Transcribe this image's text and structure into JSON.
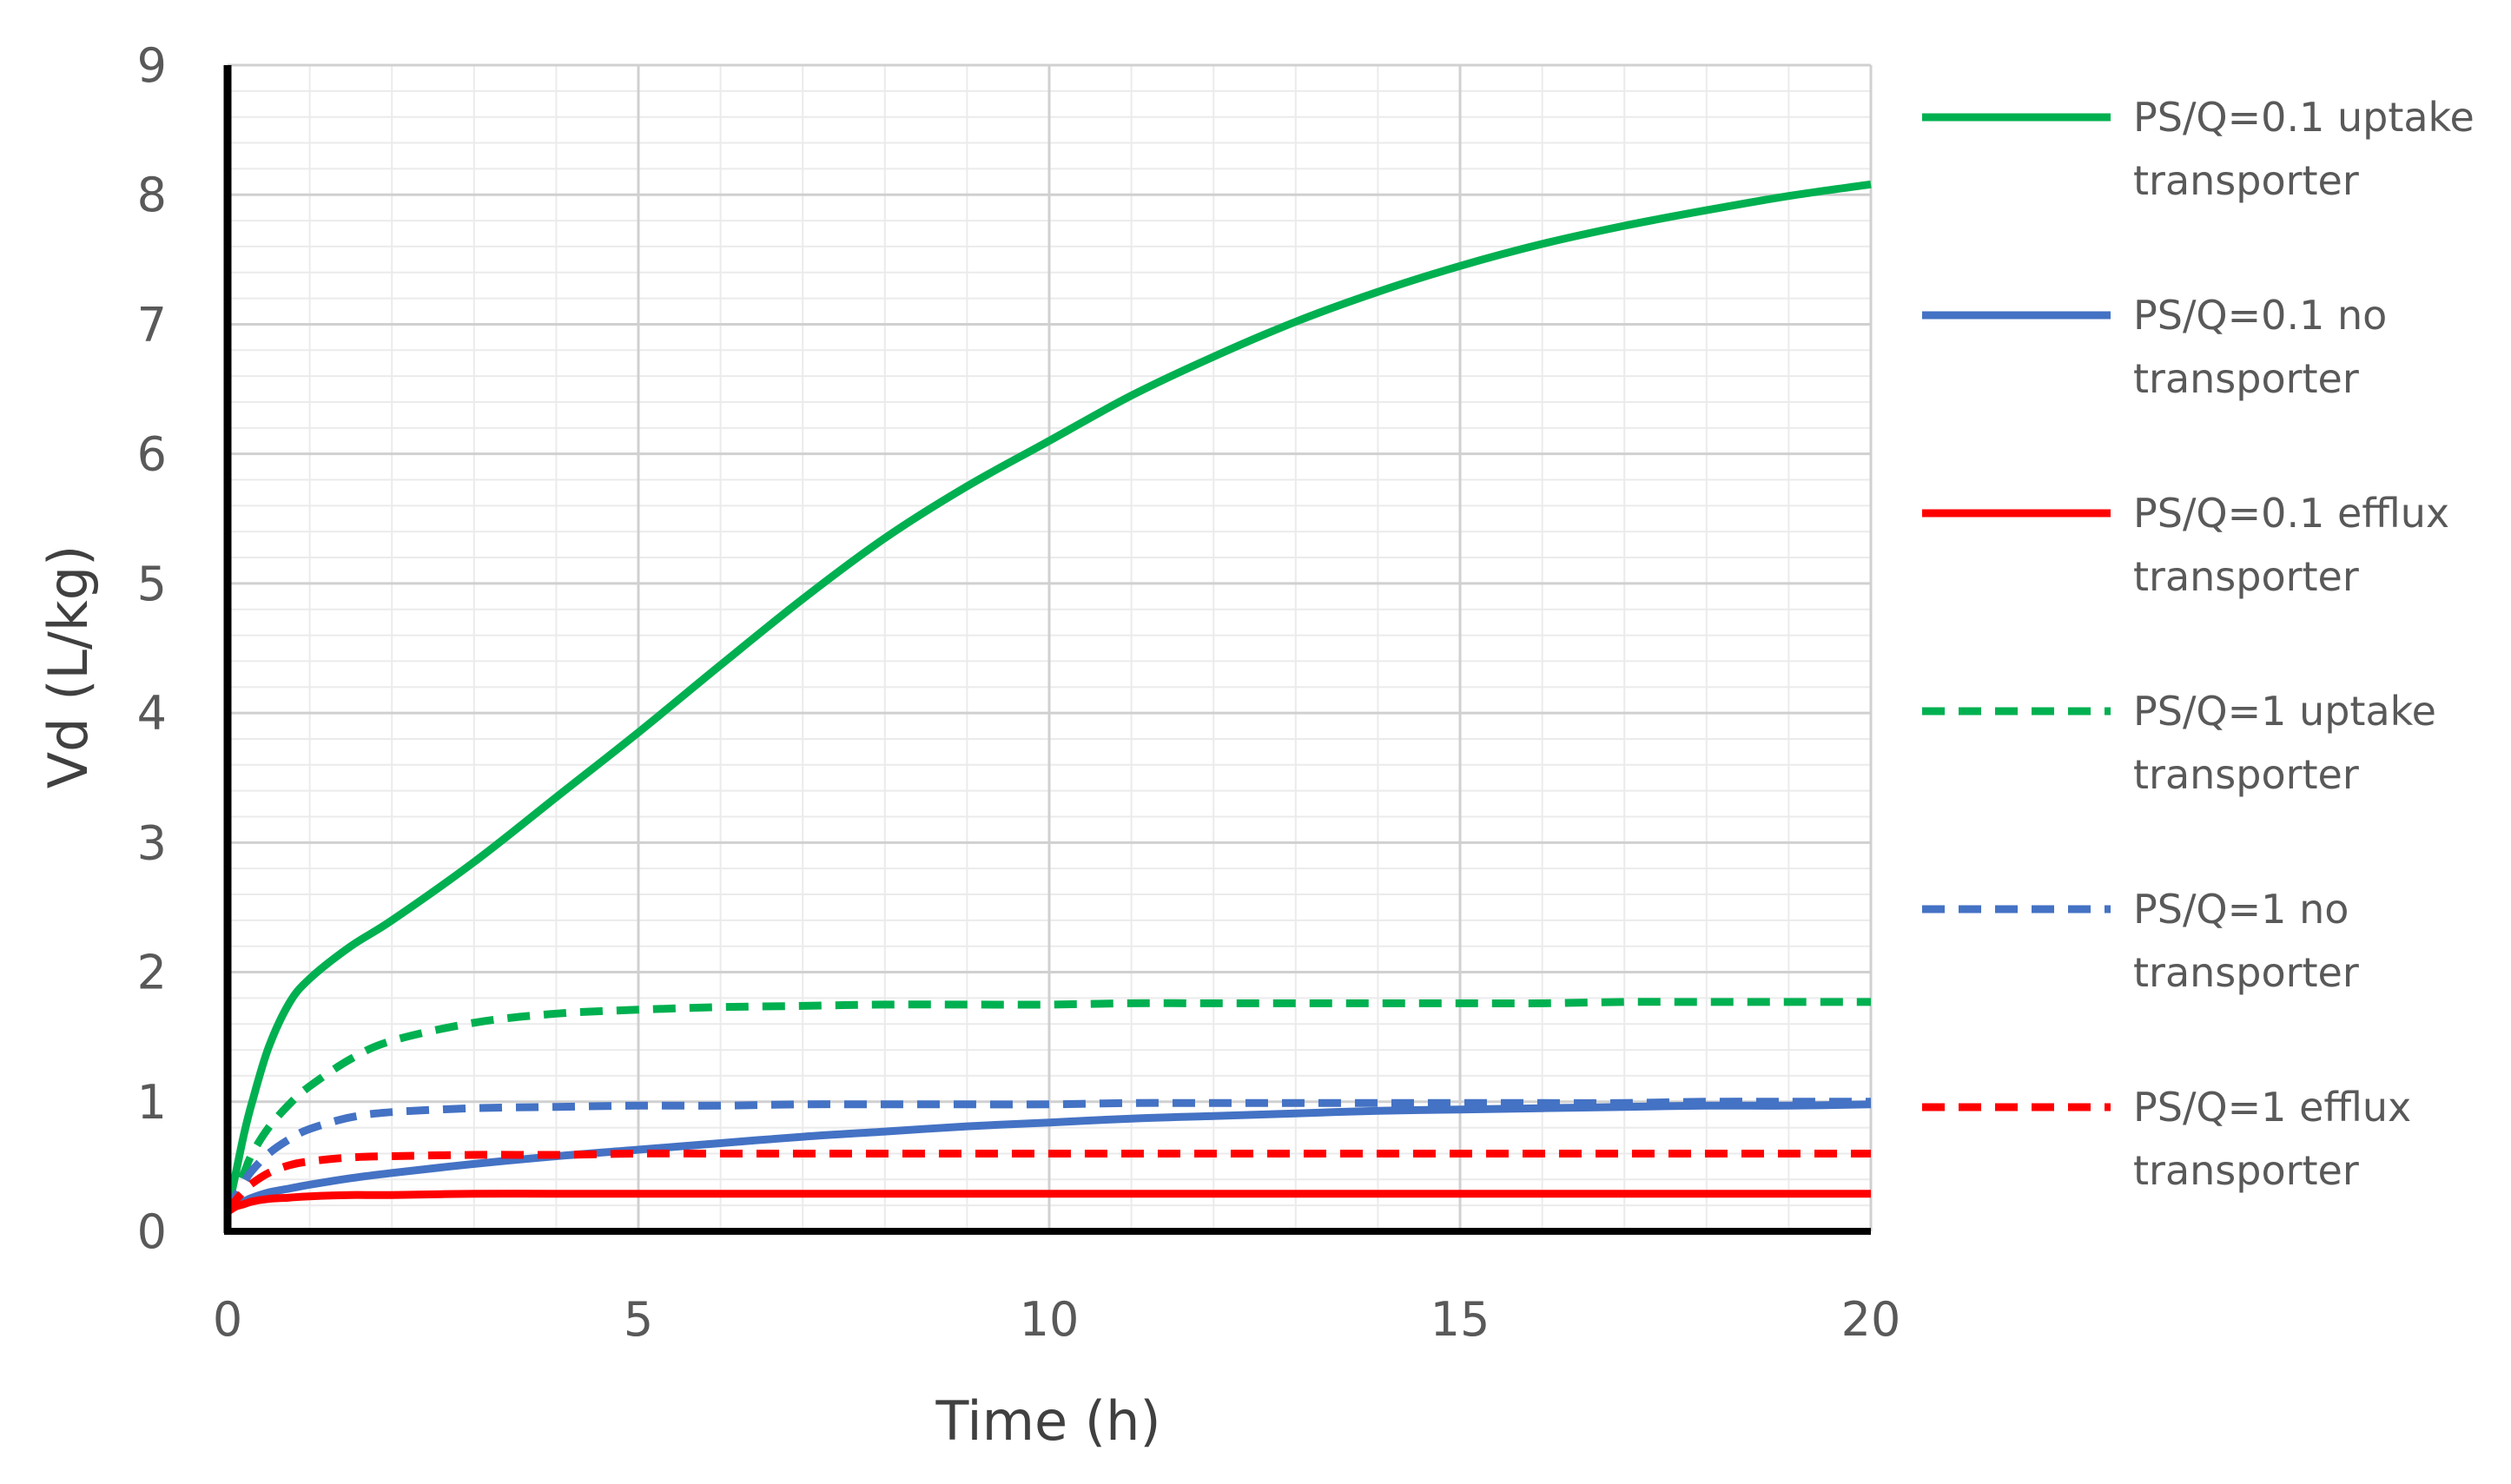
{
  "chart_data": {
    "type": "line",
    "title": "",
    "xlabel": "Time (h)",
    "ylabel": "Vd (L/kg)",
    "xlim": [
      0,
      20
    ],
    "ylim": [
      0,
      9
    ],
    "x_ticks": [
      "0",
      "5",
      "10",
      "15",
      "20"
    ],
    "y_ticks": [
      "0",
      "1",
      "2",
      "3",
      "4",
      "5",
      "6",
      "7",
      "8",
      "9"
    ],
    "grid": "major and minor",
    "legend_position": "right",
    "x": [
      0,
      0.1,
      0.2,
      0.3,
      0.5,
      0.75,
      1,
      1.5,
      2,
      3,
      4,
      5,
      6,
      7,
      8,
      9,
      10,
      11,
      12,
      13,
      14,
      15,
      16,
      17,
      18,
      19,
      20
    ],
    "series": [
      {
        "name": "PS/Q=0.1 uptake transporter",
        "color": "#00B050",
        "dash": "solid",
        "values": [
          0.15,
          0.45,
          0.75,
          1.0,
          1.42,
          1.76,
          1.95,
          2.2,
          2.4,
          2.85,
          3.35,
          3.85,
          4.37,
          4.88,
          5.35,
          5.75,
          6.1,
          6.45,
          6.75,
          7.02,
          7.25,
          7.45,
          7.62,
          7.76,
          7.88,
          7.99,
          8.08
        ]
      },
      {
        "name": "PS/Q=0.1 no transporter",
        "color": "#4472C4",
        "dash": "solid",
        "values": [
          0.15,
          0.2,
          0.23,
          0.26,
          0.3,
          0.33,
          0.36,
          0.41,
          0.45,
          0.52,
          0.58,
          0.63,
          0.68,
          0.73,
          0.77,
          0.81,
          0.84,
          0.87,
          0.89,
          0.91,
          0.93,
          0.94,
          0.95,
          0.96,
          0.97,
          0.97,
          0.98
        ]
      },
      {
        "name": "PS/Q=0.1 efflux transporter",
        "color": "#FF0000",
        "dash": "solid",
        "values": [
          0.15,
          0.19,
          0.21,
          0.23,
          0.25,
          0.26,
          0.27,
          0.28,
          0.28,
          0.29,
          0.29,
          0.29,
          0.29,
          0.29,
          0.29,
          0.29,
          0.29,
          0.29,
          0.29,
          0.29,
          0.29,
          0.29,
          0.29,
          0.29,
          0.29,
          0.29,
          0.29
        ]
      },
      {
        "name": "PS/Q=1 uptake transporter",
        "color": "#00B050",
        "dash": "dashed",
        "values": [
          0.15,
          0.3,
          0.45,
          0.6,
          0.8,
          0.98,
          1.12,
          1.33,
          1.47,
          1.61,
          1.68,
          1.71,
          1.73,
          1.74,
          1.75,
          1.75,
          1.75,
          1.76,
          1.76,
          1.76,
          1.76,
          1.76,
          1.76,
          1.77,
          1.77,
          1.77,
          1.77
        ]
      },
      {
        "name": "PS/Q=1 no transporter",
        "color": "#4472C4",
        "dash": "dashed",
        "values": [
          0.15,
          0.28,
          0.38,
          0.47,
          0.6,
          0.71,
          0.79,
          0.88,
          0.92,
          0.95,
          0.96,
          0.97,
          0.97,
          0.98,
          0.98,
          0.98,
          0.98,
          0.99,
          0.99,
          0.99,
          0.99,
          0.99,
          0.99,
          0.99,
          1.0,
          1.0,
          1.0
        ]
      },
      {
        "name": "PS/Q=1 efflux transporter",
        "color": "#FF0000",
        "dash": "dashed",
        "values": [
          0.15,
          0.24,
          0.31,
          0.37,
          0.45,
          0.51,
          0.54,
          0.57,
          0.58,
          0.59,
          0.59,
          0.6,
          0.6,
          0.6,
          0.6,
          0.6,
          0.6,
          0.6,
          0.6,
          0.6,
          0.6,
          0.6,
          0.6,
          0.6,
          0.6,
          0.6,
          0.6
        ]
      }
    ],
    "legend": [
      {
        "line1": "PS/Q=0.1 uptake",
        "line2": "transporter"
      },
      {
        "line1": "PS/Q=0.1 no",
        "line2": "transporter"
      },
      {
        "line1": "PS/Q=0.1 efflux",
        "line2": "transporter"
      },
      {
        "line1": "PS/Q=1 uptake",
        "line2": "transporter"
      },
      {
        "line1": "PS/Q=1 no",
        "line2": "transporter"
      },
      {
        "line1": "PS/Q=1 efflux",
        "line2": "transporter"
      }
    ]
  }
}
